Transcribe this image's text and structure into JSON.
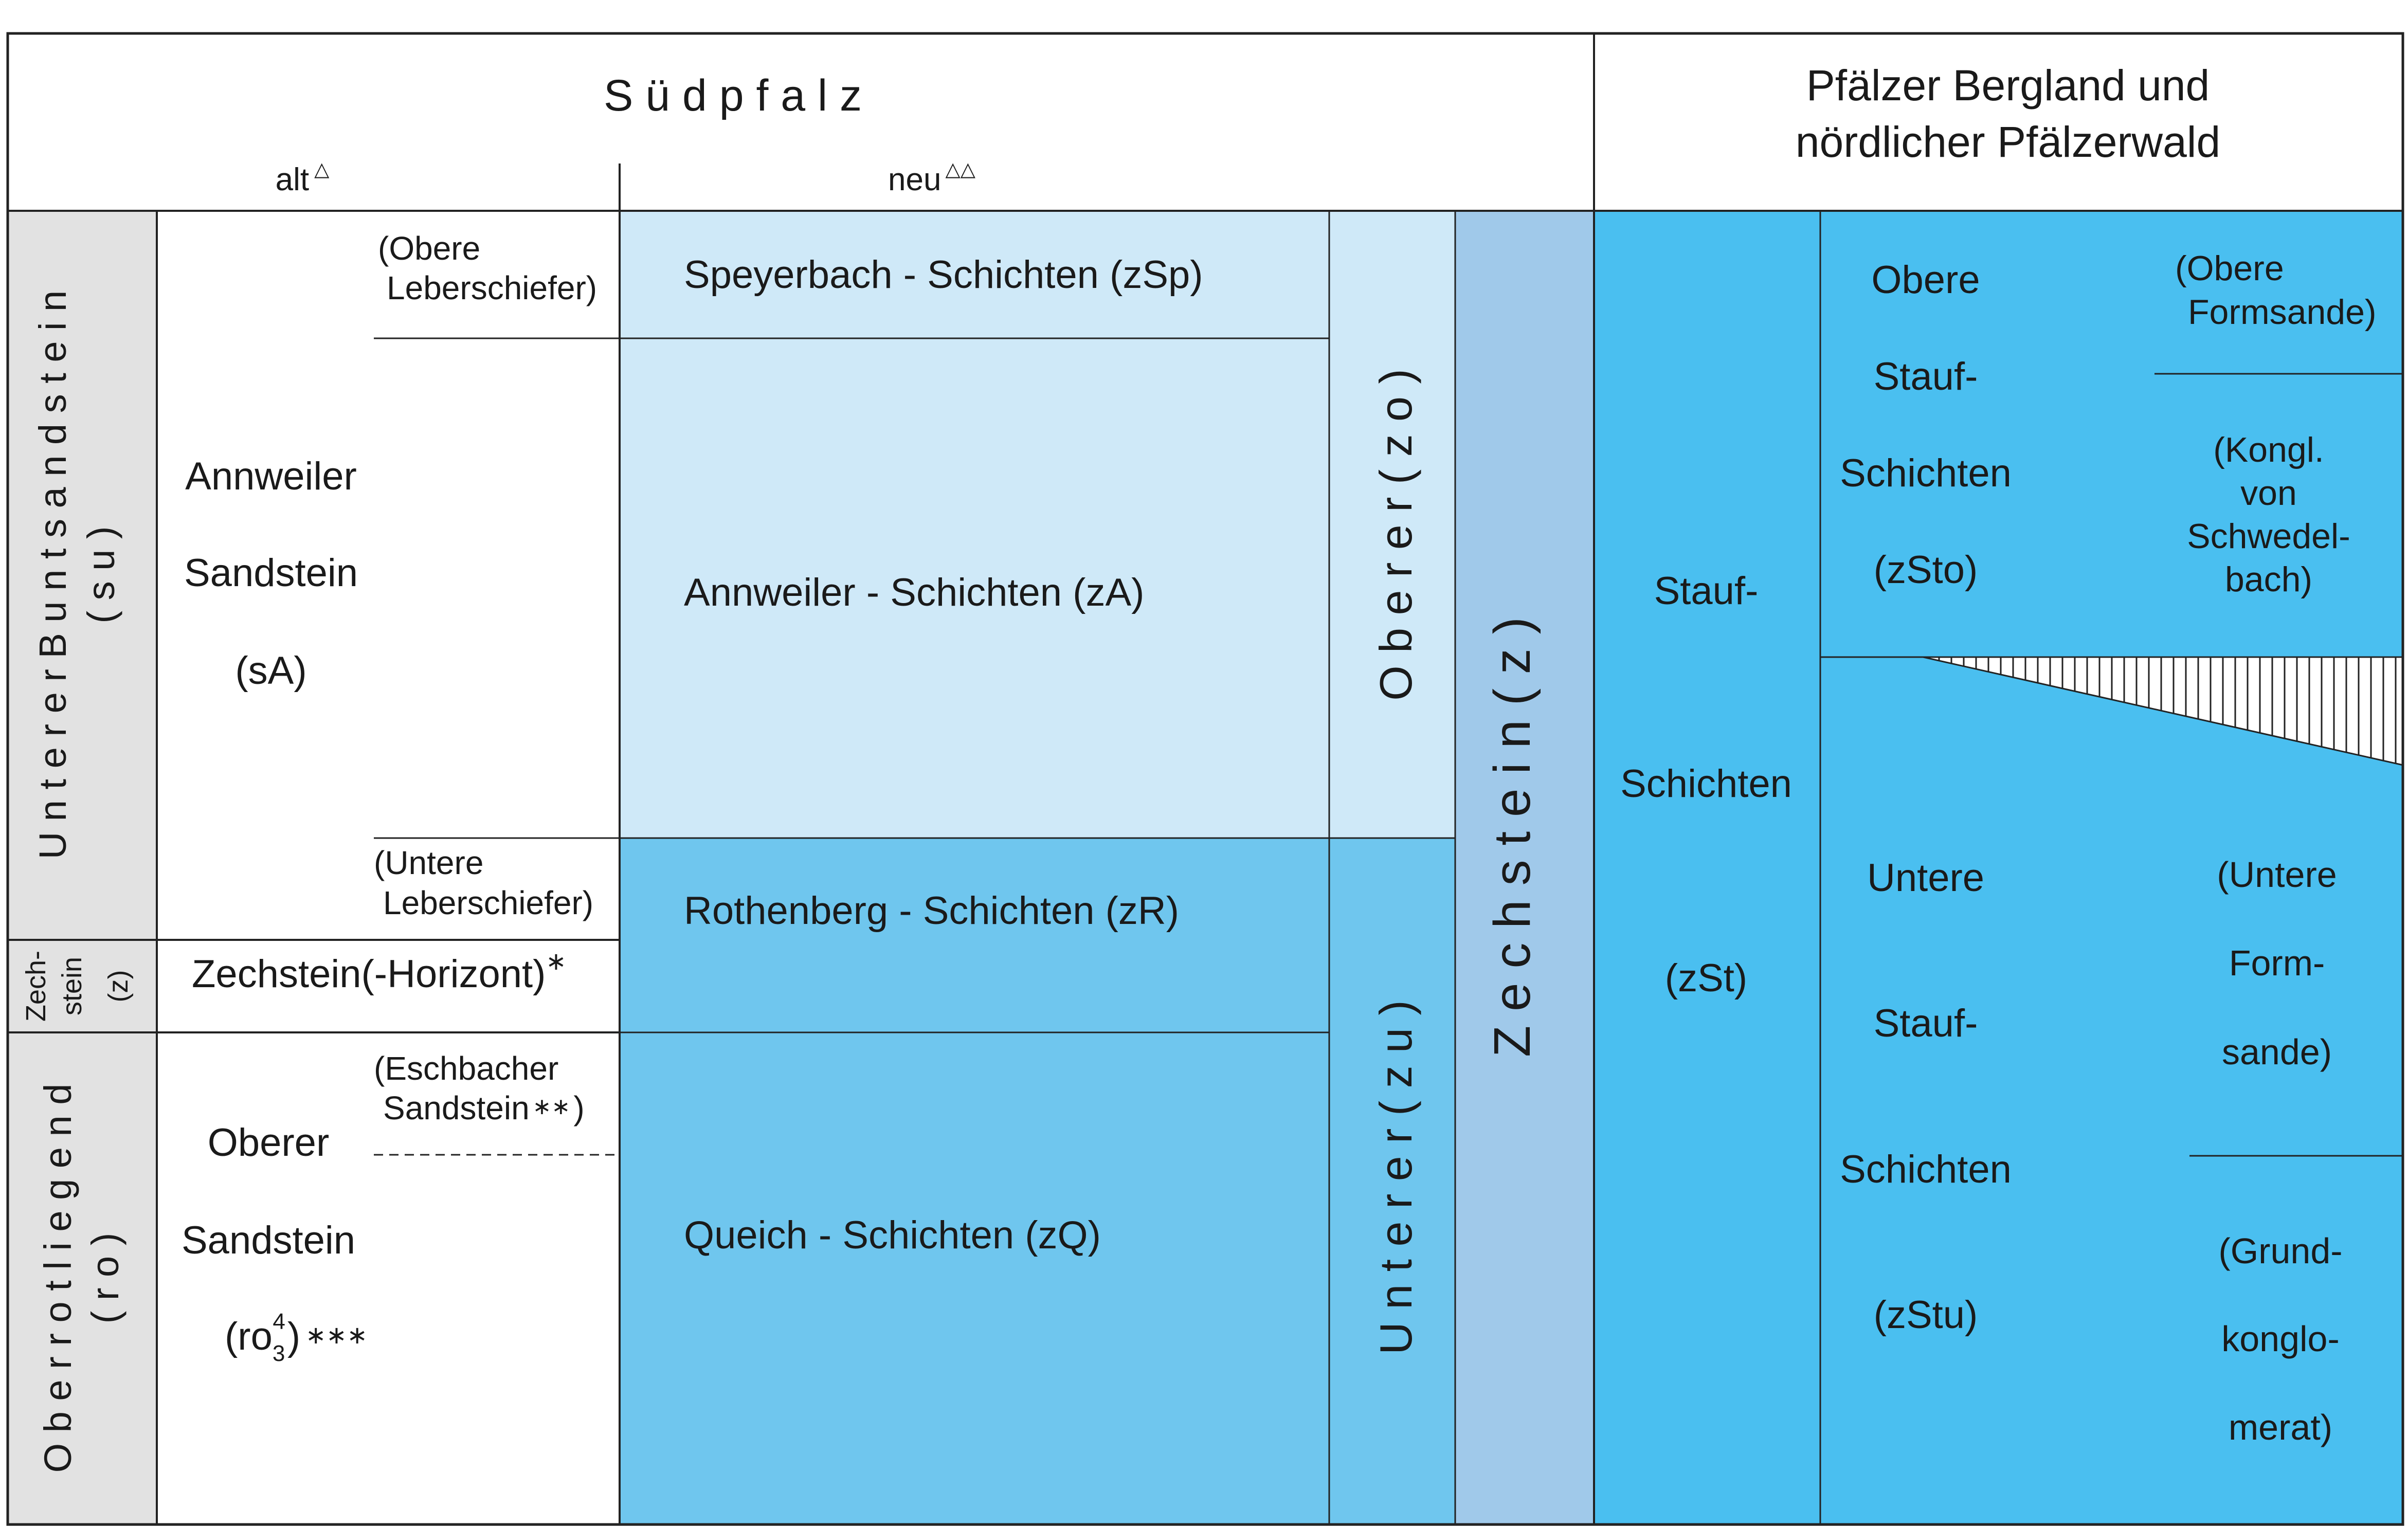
{
  "colors": {
    "grey": "#e2e2e2",
    "light_blue": "#cfe9f8",
    "mid_blue": "#6fc6ee",
    "zechstein_blue": "#a0c9ea",
    "right_blue": "#4abff0",
    "line": "#222222"
  },
  "header": {
    "suedpfalz": "S ü d p f a l z",
    "alt": "alt",
    "alt_sup": "△",
    "neu": "neu",
    "neu_sup": "△△",
    "pfalz_line1": "Pfälzer Bergland und",
    "pfalz_line2": "nördlicher Pfälzerwald"
  },
  "alt_column": {
    "unterer_buntsandstein_1": "U n t e r e r   B u n t s a n d s t e i n",
    "unterer_buntsandstein_2": "( s u )",
    "zechstein_1": "Zech-",
    "zechstein_2": "stein",
    "zechstein_3": "(z)",
    "oberrotliegend_1": "O b e r r o t l i e g e n d",
    "oberrotliegend_2": "( r o )",
    "annweiler_1": "Annweiler",
    "annweiler_2": "Sandstein",
    "annweiler_3": "(sA)",
    "obere_leberschiefer_1": "(Obere",
    "obere_leberschiefer_2": "Leberschiefer)",
    "untere_leberschiefer_1": "(Untere",
    "untere_leberschiefer_2": "Leberschiefer)",
    "zechstein_horizont": "Zechstein(-Horizont)",
    "zechstein_horizont_sup": "∗",
    "eschbacher_1": "(Eschbacher",
    "eschbacher_2": "Sandstein",
    "eschbacher_sup": "∗∗",
    "eschbacher_close": ")",
    "oberer_sandstein_1": "Oberer",
    "oberer_sandstein_2": "Sandstein",
    "ro_base": "(ro",
    "ro_sub": "3",
    "ro_sup": "4",
    "ro_close": ")",
    "ro_stars": "∗∗∗"
  },
  "neu_column": {
    "speyerbach": "Speyerbach - Schichten  (zSp)",
    "annweiler": "Annweiler - Schichten  (zA)",
    "rothenberg": "Rothenberg - Schichten  (zR)",
    "queich": "Queich - Schichten  (zQ)",
    "oberer": "O b e r e r    ( z o )",
    "unterer": "U n t e r e r    ( z u )",
    "zechstein": "Z e c h s t e i n    ( z )"
  },
  "right_column": {
    "stauf_1": "Stauf-",
    "stauf_2": "Schichten",
    "stauf_3": "(zSt)",
    "obere_1": "Obere",
    "obere_2": "Stauf-",
    "obere_3": "Schichten",
    "obere_4": "(zSto)",
    "obere_formsande_1": "(Obere",
    "obere_formsande_2": "Formsande)",
    "kongl_1": "(Kongl.",
    "kongl_2": "von",
    "kongl_3": "Schwedel-",
    "kongl_4": "bach)",
    "untere_1": "Untere",
    "untere_2": "Stauf-",
    "untere_3": "Schichten",
    "untere_4": "(zStu)",
    "untere_formsande_1": "(Untere",
    "untere_formsande_2": "Form-",
    "untere_formsande_3": "sande)",
    "grund_1": "(Grund-",
    "grund_2": "konglo-",
    "grund_3": "merat)"
  }
}
